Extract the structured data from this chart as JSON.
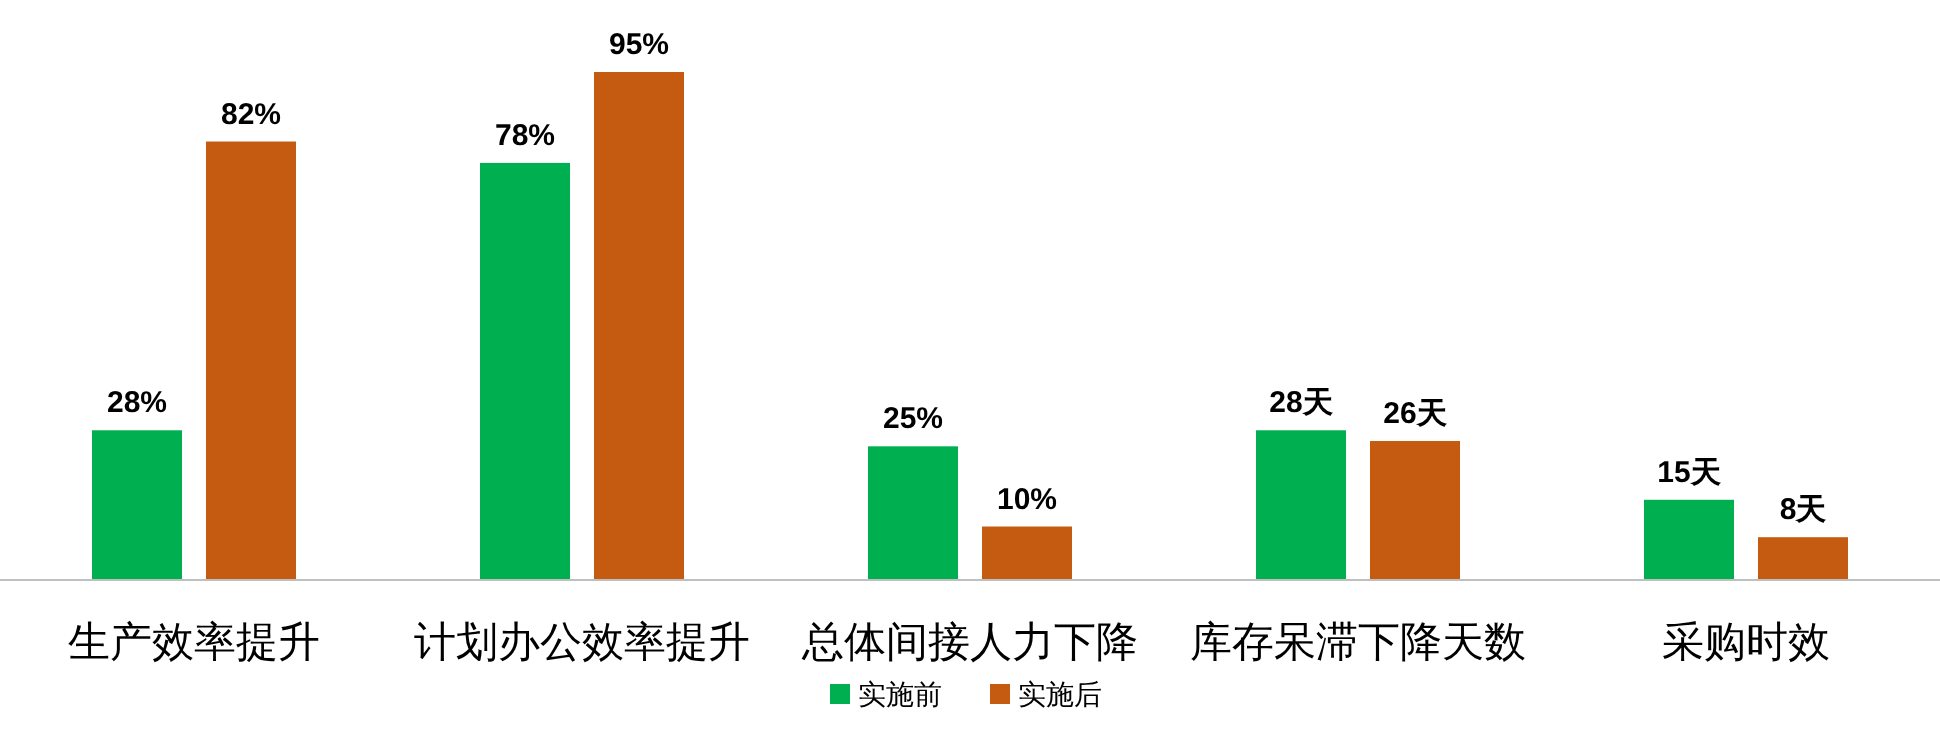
{
  "chart_data": {
    "type": "bar",
    "categories": [
      "生产效率提升",
      "计划办公效率提升",
      "总体间接人力下降",
      "库存呆滞下降天数",
      "采购时效"
    ],
    "series": [
      {
        "name": "实施前",
        "color": "#00b050",
        "values": [
          28,
          78,
          25,
          28,
          15
        ],
        "value_labels": [
          "28%",
          "78%",
          "25%",
          "28天",
          "15天"
        ]
      },
      {
        "name": "实施后",
        "color": "#c55a11",
        "values": [
          82,
          95,
          10,
          26,
          8
        ],
        "value_labels": [
          "82%",
          "95%",
          "10%",
          "26天",
          "8天"
        ]
      }
    ],
    "legend": "bottom",
    "grid": false
  }
}
